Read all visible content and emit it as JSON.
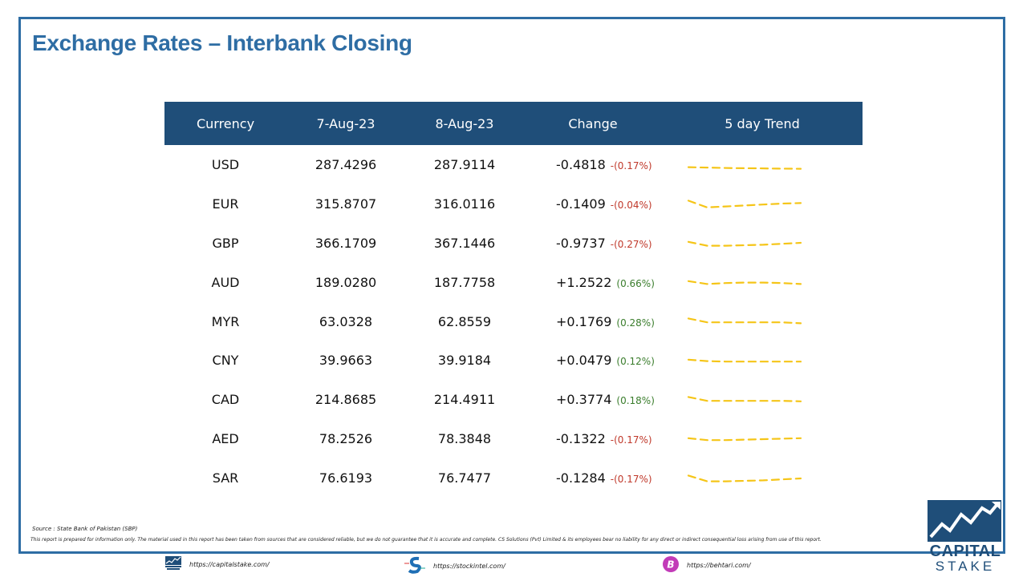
{
  "title": "Exchange Rates – Interbank Closing",
  "table": {
    "headers": [
      "Currency",
      "7-Aug-23",
      "8-Aug-23",
      "Change",
      "5 day Trend"
    ],
    "rows": [
      {
        "currency": "USD",
        "d1": "287.4296",
        "d2": "287.9114",
        "change": "-0.4818",
        "pct": "-(0.17%)",
        "direction": "neg",
        "trend": [
          2,
          1.5,
          1,
          0.8,
          0.5,
          0.3
        ]
      },
      {
        "currency": "EUR",
        "d1": "315.8707",
        "d2": "316.0116",
        "change": "-0.1409",
        "pct": "-(0.04%)",
        "direction": "neg",
        "trend": [
          8,
          1,
          2,
          3,
          4,
          5,
          5.5
        ]
      },
      {
        "currency": "GBP",
        "d1": "366.1709",
        "d2": "367.1446",
        "change": "-0.9737",
        "pct": "-(0.27%)",
        "direction": "neg",
        "trend": [
          6,
          2,
          2,
          2.5,
          3,
          4,
          5
        ]
      },
      {
        "currency": "AUD",
        "d1": "189.0280",
        "d2": "187.7758",
        "change": "+1.2522",
        "pct": "(0.66%)",
        "direction": "pos",
        "trend": [
          6,
          3,
          4,
          4.5,
          4.5,
          4,
          3
        ]
      },
      {
        "currency": "MYR",
        "d1": "63.0328",
        "d2": "62.8559",
        "change": "+0.1769",
        "pct": "(0.28%)",
        "direction": "pos",
        "trend": [
          8,
          4,
          4,
          4,
          4,
          4,
          3
        ]
      },
      {
        "currency": "CNY",
        "d1": "39.9663",
        "d2": "39.9184",
        "change": "+0.0479",
        "pct": "(0.12%)",
        "direction": "pos",
        "trend": [
          6,
          4.5,
          4,
          4,
          4,
          4,
          4
        ]
      },
      {
        "currency": "CAD",
        "d1": "214.8685",
        "d2": "214.4911",
        "change": "+0.3774",
        "pct": "(0.18%)",
        "direction": "pos",
        "trend": [
          8,
          4,
          4,
          4,
          4,
          4,
          3.5
        ]
      },
      {
        "currency": "AED",
        "d1": "78.2526",
        "d2": "78.3848",
        "change": "-0.1322",
        "pct": "-(0.17%)",
        "direction": "neg",
        "trend": [
          6,
          4,
          4,
          4.5,
          5,
          5.5,
          6
        ]
      },
      {
        "currency": "SAR",
        "d1": "76.6193",
        "d2": "76.7477",
        "change": "-0.1284",
        "pct": "-(0.17%)",
        "direction": "neg",
        "trend": [
          8,
          2,
          2,
          2.5,
          3,
          4,
          5
        ]
      }
    ]
  },
  "source": "Source : State Bank of Pakistan (SBP)",
  "disclaimer": "This report is prepared for information only. The material used in this report has been taken from sources that are considered reliable, but we do not guarantee that it is accurate and complete. CS Solutions (Pvt) Limited & its employees bear no liability for any direct or indirect consequential loss arising from use of this report.",
  "footer": {
    "link1": "https://capitalstake.com/",
    "link2": "https://stockintel.com/",
    "link3": "https://behtari.com/"
  },
  "brand": {
    "line1": "CAPITAL",
    "line2": "STAKE"
  },
  "colors": {
    "accent": "#2e6da4",
    "header_bg": "#1f4e79",
    "negative": "#c0392b",
    "positive": "#3a7d2c",
    "trend_line": "#f5c518"
  }
}
